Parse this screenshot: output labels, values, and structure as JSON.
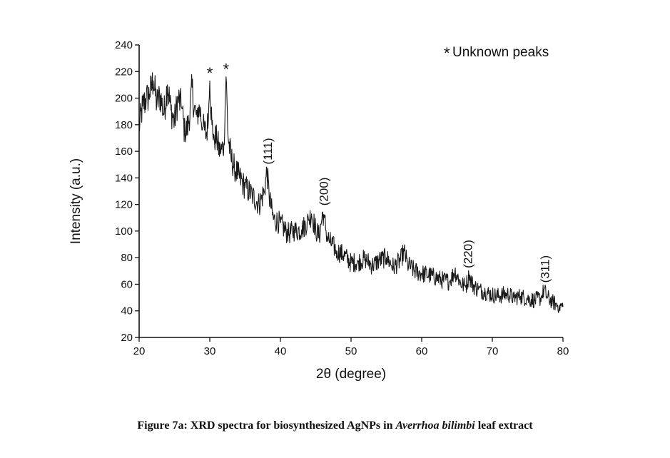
{
  "chart_data": {
    "type": "line",
    "title": "",
    "xlabel": "2θ (degree)",
    "ylabel": "Intensity (a.u.)",
    "xlim": [
      20,
      80
    ],
    "ylim": [
      20,
      240
    ],
    "x_ticks": [
      20,
      30,
      40,
      50,
      60,
      70,
      80
    ],
    "y_ticks": [
      20,
      40,
      60,
      80,
      100,
      120,
      140,
      160,
      180,
      200,
      220,
      240
    ],
    "grid": false,
    "legend": {
      "text": "Unknown peaks",
      "marker": "*",
      "position": "top-right"
    },
    "series": [
      {
        "x": [
          20,
          20.5,
          21,
          21.5,
          22,
          22.5,
          23,
          23.5,
          24,
          24.5,
          25,
          25.5,
          26,
          26.5,
          27,
          27.5,
          27.8,
          28.2,
          28.5,
          29,
          29.5,
          29.8,
          30.0,
          30.3,
          30.6,
          31,
          31.5,
          32.0,
          32.3,
          32.6,
          33,
          33.5,
          34,
          35,
          36,
          37,
          37.7,
          38.1,
          38.4,
          39,
          40,
          41,
          42,
          43,
          44,
          44.4,
          45,
          45.5,
          46.0,
          46.2,
          46.6,
          47,
          48,
          49,
          50,
          51,
          52,
          53,
          54,
          55,
          56,
          57,
          57.5,
          58,
          59,
          60,
          61,
          62,
          63,
          64,
          64.7,
          65.5,
          66.2,
          66.7,
          67.3,
          68,
          69,
          70,
          71,
          72,
          73,
          74,
          75,
          76,
          77,
          77.3,
          77.8,
          78.5,
          79,
          79.5,
          80
        ],
        "y": [
          178,
          194,
          199,
          203,
          213,
          196,
          202,
          188,
          210,
          191,
          182,
          200,
          193,
          172,
          181,
          208,
          192,
          186,
          195,
          178,
          173,
          183,
          213,
          180,
          172,
          168,
          158,
          166,
          216,
          170,
          155,
          148,
          142,
          133,
          127,
          120,
          130,
          145,
          126,
          109,
          106,
          98,
          100,
          101,
          108,
          113,
          101,
          96,
          114,
          110,
          96,
          92,
          85,
          82,
          76,
          77,
          79,
          74,
          78,
          80,
          73,
          78,
          85,
          75,
          70,
          68,
          67,
          65,
          63,
          62,
          70,
          61,
          58,
          66,
          59,
          56,
          54,
          52,
          51,
          53,
          50,
          51,
          49,
          48,
          50,
          56,
          50,
          47,
          45,
          44,
          43
        ]
      }
    ],
    "annotations": [
      {
        "label": "*",
        "x": 30.0,
        "y": 217
      },
      {
        "label": "*",
        "x": 32.3,
        "y": 220
      },
      {
        "label": "(111)",
        "x": 38.2,
        "y": 148
      },
      {
        "label": "(200)",
        "x": 46.1,
        "y": 117
      },
      {
        "label": "(220)",
        "x": 66.5,
        "y": 70
      },
      {
        "label": "(311)",
        "x": 77.4,
        "y": 59
      }
    ]
  },
  "caption": {
    "prefix": "Figure 7a: XRD spectra for biosynthesized AgNPs in ",
    "italic": "Averrhoa bilimbi",
    "suffix": " leaf extract"
  }
}
